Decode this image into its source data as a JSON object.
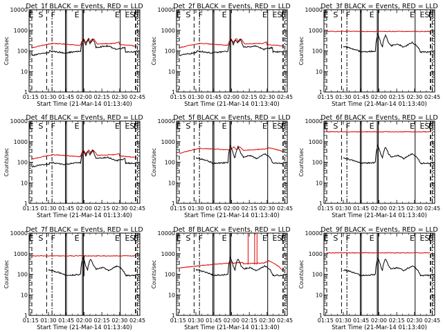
{
  "chart_data": {
    "type": "line",
    "panels": [
      {
        "title": "Det_1f BLACK = Events, RED = LLD"
      },
      {
        "title": "Det_2f BLACK = Events, RED = LLD"
      },
      {
        "title": "Det_3f BLACK = Events, RED = LLD"
      },
      {
        "title": "Det_4f BLACK = Events, RED = LLD"
      },
      {
        "title": "Det_5f BLACK = Events, RED = LLD"
      },
      {
        "title": "Det_6f BLACK = Events, RED = LLD"
      },
      {
        "title": "Det_7f BLACK = Events, RED = LLD"
      },
      {
        "title": "Det_8f BLACK = Events, RED = LLD"
      },
      {
        "title": "Det_9f BLACK = Events, RED = LLD"
      }
    ],
    "xlabel": "Start Time (21-Mar-14 01:13:40)",
    "ylabel": "Counts/sec",
    "x_tick_labels": [
      "01:15",
      "01:30",
      "01:45",
      "02:00",
      "02:15",
      "02:30",
      "02:45"
    ],
    "x_ticks_min": [
      15,
      30,
      45,
      60,
      75,
      90,
      105
    ],
    "xlim_min": [
      13.67,
      107
    ],
    "y_scale": "log",
    "ylim": [
      1,
      10000
    ],
    "y_tick_labels": [
      "1",
      "10",
      "100",
      "1000",
      "10000"
    ],
    "y_ticks": [
      1,
      10,
      100,
      1000,
      10000
    ],
    "series_colors": {
      "events": "#000000",
      "lld": "#dd0000"
    },
    "region_letters": [
      "E",
      "S",
      "F",
      "E",
      "E",
      "S",
      "F",
      "E",
      "E"
    ],
    "region_letter_x_min": [
      15.5,
      23.5,
      34,
      54,
      88,
      100.5,
      103.5,
      96.5,
      104
    ]
  }
}
